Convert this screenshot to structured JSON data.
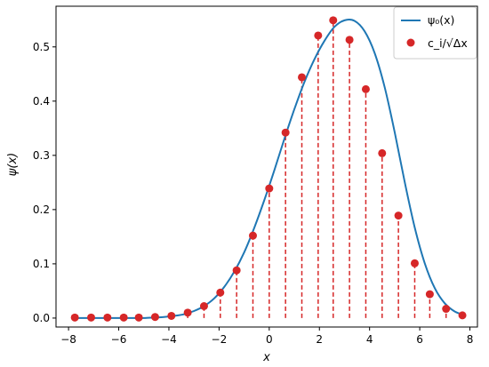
{
  "chart_data": {
    "type": "line",
    "title": "",
    "xlabel": "x",
    "ylabel": "ψ(x)",
    "xlim": [
      -8.5,
      8.3
    ],
    "ylim": [
      -0.0165,
      0.575
    ],
    "xticks": [
      -8,
      -6,
      -4,
      -2,
      0,
      2,
      4,
      6,
      8
    ],
    "yticks": [
      0.0,
      0.1,
      0.2,
      0.3,
      0.4,
      0.5
    ],
    "xtick_labels": [
      "−8",
      "−6",
      "−4",
      "−2",
      "0",
      "2",
      "4",
      "6",
      "8"
    ],
    "ytick_labels": [
      "0.0",
      "0.1",
      "0.2",
      "0.3",
      "0.4",
      "0.5"
    ],
    "grid": false,
    "legend_position": "top-right",
    "colors": {
      "curve": "#1f77b4",
      "points": "#d62728",
      "stems": "#d62728"
    },
    "series": [
      {
        "name": "ψ₀(x)",
        "kind": "line",
        "x": [
          -7.8,
          -7.4,
          -7.0,
          -6.6,
          -6.2,
          -5.8,
          -5.4,
          -5.0,
          -4.6,
          -4.2,
          -3.8,
          -3.4,
          -3.0,
          -2.6,
          -2.2,
          -1.8,
          -1.4,
          -1.0,
          -0.6,
          -0.2,
          0.2,
          0.6,
          1.0,
          1.4,
          1.8,
          2.2,
          2.6,
          3.0,
          3.4,
          3.8,
          4.2,
          4.6,
          5.0,
          5.4,
          5.8,
          6.2,
          6.6,
          7.0,
          7.4,
          7.8
        ],
        "y": [
          0.0,
          0.0,
          0.0,
          0.0,
          0.0,
          0.0,
          0.0,
          0.0,
          0.001,
          0.002,
          0.004,
          0.007,
          0.013,
          0.022,
          0.036,
          0.057,
          0.085,
          0.121,
          0.166,
          0.217,
          0.272,
          0.33,
          0.385,
          0.435,
          0.477,
          0.511,
          0.537,
          0.549,
          0.548,
          0.529,
          0.489,
          0.426,
          0.343,
          0.251,
          0.167,
          0.101,
          0.055,
          0.027,
          0.012,
          0.005
        ]
      },
      {
        "name": "c_i/√Δx",
        "kind": "scatter",
        "x": [
          -7.75,
          -7.1,
          -6.45,
          -5.8,
          -5.2,
          -4.55,
          -3.9,
          -3.25,
          -2.6,
          -1.95,
          -1.3,
          -0.65,
          0.0,
          0.65,
          1.3,
          1.95,
          2.55,
          3.2,
          3.85,
          4.5,
          5.15,
          5.8,
          6.4,
          7.05,
          7.7
        ],
        "y": [
          0.001,
          0.001,
          0.001,
          0.001,
          0.001,
          0.002,
          0.004,
          0.01,
          0.022,
          0.047,
          0.088,
          0.152,
          0.239,
          0.342,
          0.444,
          0.521,
          0.549,
          0.513,
          0.422,
          0.304,
          0.189,
          0.101,
          0.044,
          0.017,
          0.005
        ]
      }
    ]
  }
}
